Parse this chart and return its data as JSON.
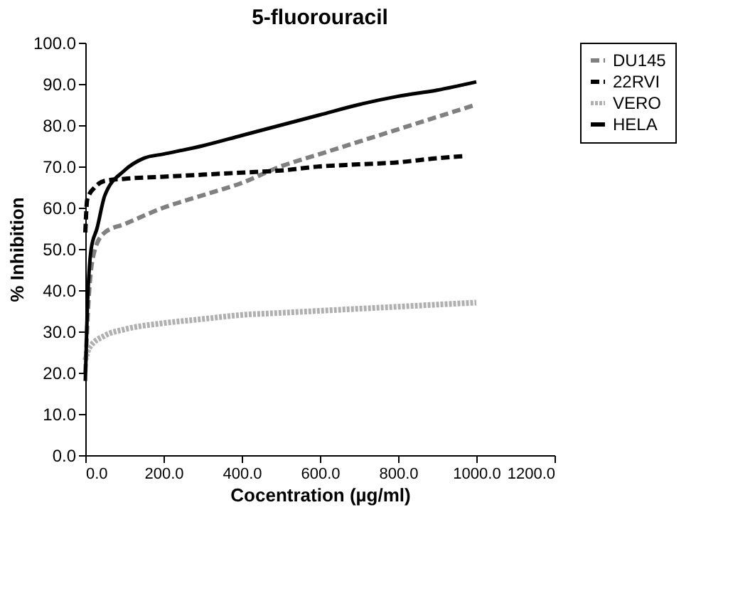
{
  "chart_data": {
    "type": "line",
    "title": "5-fluorouracil",
    "xlabel": "Cocentration (µg/ml)",
    "ylabel": "% Inhibition",
    "xlim": [
      0,
      1200
    ],
    "xticks": [
      {
        "value": 0,
        "label": "0.0"
      },
      {
        "value": 200,
        "label": "200.0"
      },
      {
        "value": 400,
        "label": "400.0"
      },
      {
        "value": 600,
        "label": "600.0"
      },
      {
        "value": 800,
        "label": "800.0"
      },
      {
        "value": 1000,
        "label": "1000.0"
      },
      {
        "value": 1200,
        "label": "1200.0"
      }
    ],
    "ylim": [
      0,
      100
    ],
    "yticks": [
      {
        "value": 0,
        "label": "0.0"
      },
      {
        "value": 10,
        "label": "10.0"
      },
      {
        "value": 20,
        "label": "20.0"
      },
      {
        "value": 30,
        "label": "30.0"
      },
      {
        "value": 40,
        "label": "40.0"
      },
      {
        "value": 50,
        "label": "50.0"
      },
      {
        "value": 60,
        "label": "60.0"
      },
      {
        "value": 70,
        "label": "70.0"
      },
      {
        "value": 80,
        "label": "80.0"
      },
      {
        "value": 90,
        "label": "90.0"
      },
      {
        "value": 100,
        "label": "100.0"
      }
    ],
    "grid": false,
    "legend": "right",
    "marker": "none",
    "series": [
      {
        "name": "DU145",
        "color": "#808080",
        "line_style": "dashed",
        "x": [
          0,
          10,
          25,
          50,
          100,
          200,
          300,
          400,
          500,
          600,
          700,
          800,
          900,
          1000
        ],
        "values": [
          20,
          40,
          50,
          54,
          56,
          60,
          63,
          66,
          70,
          73,
          76,
          79,
          82,
          85
        ]
      },
      {
        "name": "22RVI",
        "color": "#000000",
        "line_style": "dashed",
        "x": [
          0,
          5,
          25,
          50,
          100,
          200,
          300,
          400,
          500,
          600,
          700,
          800,
          900,
          970
        ],
        "values": [
          54,
          62,
          65,
          66.5,
          67,
          67.5,
          68,
          68.5,
          69,
          70,
          70.5,
          71,
          72,
          72.5
        ]
      },
      {
        "name": "VERO",
        "color": "#b0b0b0",
        "line_style": "dotted",
        "x": [
          0,
          10,
          50,
          100,
          200,
          300,
          400,
          500,
          600,
          700,
          800,
          900,
          1000
        ],
        "values": [
          23,
          26,
          29,
          30.5,
          32,
          33,
          34,
          34.5,
          35,
          35.5,
          36,
          36.5,
          37
        ]
      },
      {
        "name": "HELA",
        "color": "#000000",
        "line_style": "solid",
        "x": [
          0,
          5,
          15,
          30,
          50,
          100,
          150,
          200,
          300,
          400,
          500,
          600,
          700,
          800,
          900,
          1000
        ],
        "values": [
          18,
          35,
          50,
          55,
          63,
          69,
          72,
          73,
          75,
          77.5,
          80,
          82.5,
          85,
          87,
          88.5,
          90.5
        ]
      }
    ]
  }
}
